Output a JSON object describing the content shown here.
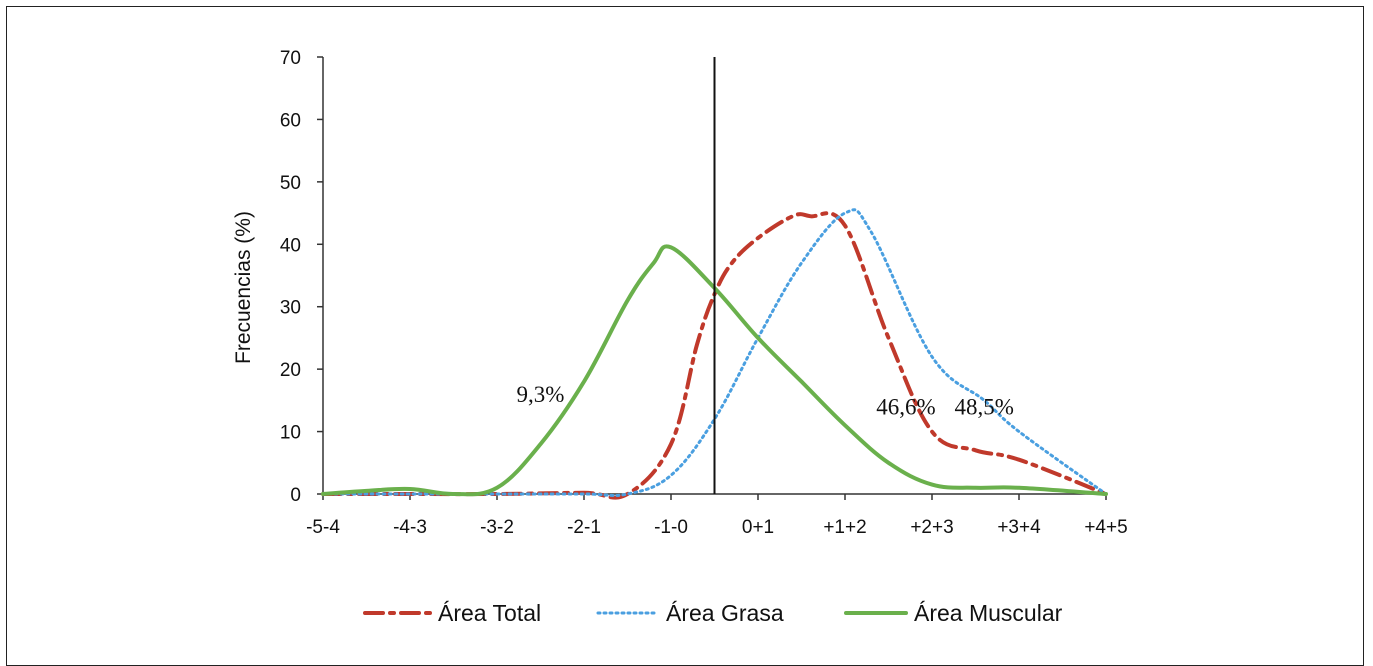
{
  "chart_data": {
    "type": "line",
    "title": "",
    "xlabel": "",
    "ylabel": "Frecuencias (%)",
    "ylim": [
      0,
      70
    ],
    "yticks": [
      "0",
      "10",
      "20",
      "30",
      "40",
      "50",
      "60",
      "70"
    ],
    "categories": [
      "-5-4",
      "-4-3",
      "-3-2",
      "-2-1",
      "-1-0",
      "0+1",
      "+1+2",
      "+2+3",
      "+3+4",
      "+4+5"
    ],
    "grid": false,
    "legend_position": "bottom",
    "vertical_reference_line_x": -0.5,
    "series": [
      {
        "name": "Área Total",
        "style": "dash-dot",
        "color": "#c0392b",
        "x": [
          0,
          1,
          2,
          3,
          3.5,
          4,
          4.3,
          4.5,
          4.7,
          5,
          5.4,
          5.6,
          6,
          6.5,
          7,
          7.5,
          8,
          9
        ],
        "values": [
          0,
          0,
          0,
          0.2,
          0,
          8,
          24,
          32,
          37,
          41,
          44.5,
          44.5,
          43,
          25,
          10,
          7,
          5.5,
          0
        ]
      },
      {
        "name": "Área Grasa",
        "style": "dotted",
        "color": "#4a9fe0",
        "x": [
          0,
          1,
          2,
          3,
          3.5,
          4,
          4.5,
          5,
          5.5,
          6,
          6.3,
          7,
          7.6,
          8,
          9
        ],
        "values": [
          0,
          0,
          0,
          0,
          0,
          3,
          12,
          25,
          37,
          45,
          42,
          22,
          15,
          10,
          0
        ]
      },
      {
        "name": "Área Muscular",
        "style": "solid",
        "color": "#6ab04c",
        "x": [
          0,
          0.5,
          1,
          1.5,
          2,
          2.5,
          3,
          3.5,
          3.8,
          4,
          4.5,
          5,
          5.5,
          6,
          6.5,
          7,
          7.5,
          8,
          9
        ],
        "values": [
          0,
          0.5,
          0.8,
          0,
          1,
          8,
          18,
          31,
          37,
          39.5,
          33,
          25,
          18,
          11,
          5,
          1.5,
          1,
          1,
          0
        ]
      }
    ],
    "annotations": [
      {
        "text": "9,3%",
        "x": 2.5,
        "y": 16
      },
      {
        "text": "46,6%",
        "x": 6.7,
        "y": 14
      },
      {
        "text": "48,5%",
        "x": 7.6,
        "y": 14
      }
    ]
  }
}
